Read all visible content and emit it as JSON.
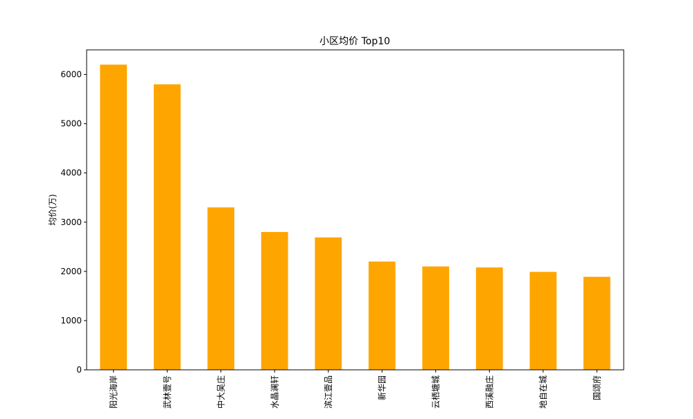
{
  "chart_data": {
    "type": "bar",
    "title": "小区均价 Top10",
    "xlabel": "",
    "ylabel": "均价(万)",
    "categories": [
      "阳光海岸",
      "武林壹号",
      "中大吴庄",
      "水晶澜轩",
      "滨江壹品",
      "新华园",
      "云栖塘城",
      "西溪融庄",
      "地自在城",
      "国颂府"
    ],
    "values": [
      6200,
      5800,
      3300,
      2800,
      2690,
      2200,
      2100,
      2080,
      1990,
      1890
    ],
    "ylim": [
      0,
      6500
    ],
    "yticks": [
      0,
      1000,
      2000,
      3000,
      4000,
      5000,
      6000
    ],
    "bar_color": "#FFA500",
    "grid": false,
    "legend": "none"
  }
}
